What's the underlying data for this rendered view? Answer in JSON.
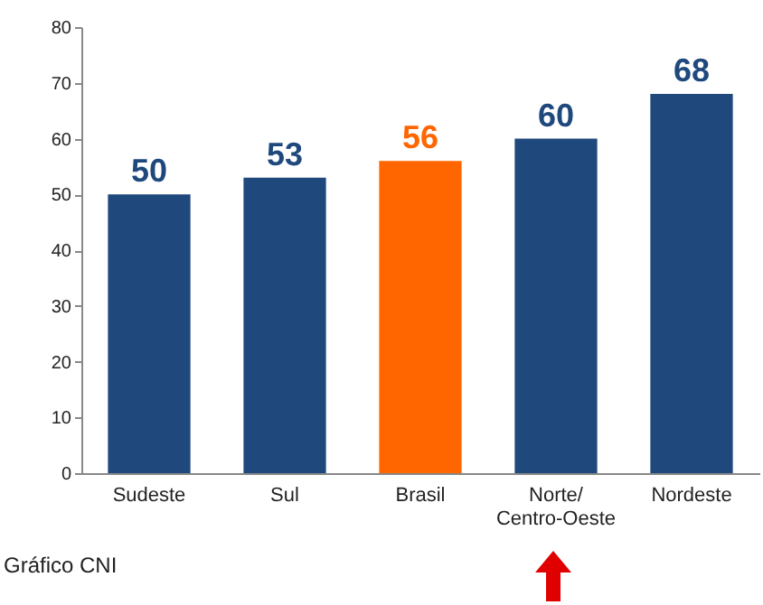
{
  "chart_data": {
    "type": "bar",
    "categories": [
      "Sudeste",
      "Sul",
      "Brasil",
      "Norte/\nCentro-Oeste",
      "Nordeste"
    ],
    "values": [
      50,
      53,
      56,
      60,
      68
    ],
    "colors": [
      "#1f497d",
      "#1f497d",
      "#ff6600",
      "#1f497d",
      "#1f497d"
    ],
    "ylim": [
      0,
      80
    ],
    "yticks": [
      0,
      10,
      20,
      30,
      40,
      50,
      60,
      70,
      80
    ],
    "grid": false,
    "data_labels": true,
    "annotations": [
      "Gráfico CNI"
    ]
  }
}
